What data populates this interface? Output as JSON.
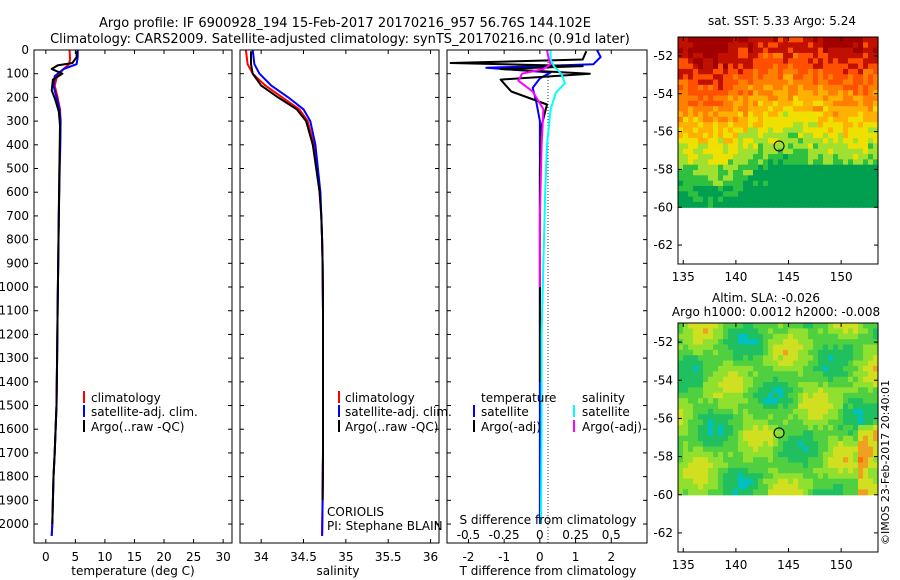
{
  "header": {
    "title_line1": "Argo profile: IF 6900928_194 15-Feb-2017 20170216_957 56.76S 144.102E",
    "title_line2": "Climatology: CARS2009. Satellite-adjusted climatology: synTS_20170216.nc (0.91d later)"
  },
  "chart_data": [
    {
      "id": "temperature",
      "type": "line",
      "xlabel": "temperature (deg C)",
      "ylabel": "",
      "xlim": [
        -2,
        31.5
      ],
      "ylim": [
        2080,
        0
      ],
      "xticks": [
        0,
        5,
        10,
        15,
        20,
        25,
        30
      ],
      "yticks": [
        0,
        100,
        200,
        300,
        400,
        500,
        600,
        700,
        800,
        900,
        1000,
        1100,
        1200,
        1300,
        1400,
        1500,
        1600,
        1700,
        1800,
        1900,
        2000
      ],
      "legend": [
        "climatology",
        "satellite-adj. clim.",
        "Argo(..raw -QC)"
      ],
      "legend_placement": "lower-left",
      "series": [
        {
          "name": "climatology",
          "color": "#ff0000",
          "x": [
            4.0,
            4.1,
            3.9,
            3.0,
            1.9,
            1.5,
            2.0,
            2.4,
            2.5,
            2.4,
            2.3,
            2.2,
            2.1,
            2.0,
            1.9,
            1.8,
            1.5,
            1.3,
            1.2,
            1.1,
            1.0
          ],
          "y": [
            0,
            40,
            60,
            80,
            110,
            150,
            200,
            250,
            300,
            400,
            500,
            700,
            900,
            1100,
            1300,
            1500,
            1700,
            1800,
            1900,
            2000,
            2050
          ]
        },
        {
          "name": "satellite-adj. clim.",
          "color": "#0000ff",
          "x": [
            5.4,
            5.4,
            5.2,
            3.0,
            1.5,
            1.3,
            1.8,
            2.3,
            2.5,
            2.45,
            2.35,
            2.2,
            2.1,
            2.0,
            1.9,
            1.8,
            1.5,
            1.3,
            1.2,
            1.1,
            1.0
          ],
          "y": [
            0,
            30,
            60,
            80,
            110,
            150,
            200,
            250,
            300,
            400,
            500,
            700,
            900,
            1100,
            1300,
            1500,
            1700,
            1800,
            1900,
            2000,
            2050
          ]
        },
        {
          "name": "Argo(..raw -QC)",
          "color": "#000000",
          "x": [
            5.2,
            5.2,
            4.5,
            2.0,
            1.0,
            2.8,
            1.2,
            1.0,
            1.6,
            2.2,
            2.4,
            2.35,
            2.3,
            2.2,
            2.1,
            2.0,
            1.9,
            1.8,
            1.5,
            1.3,
            1.2,
            1.1
          ],
          "y": [
            5,
            30,
            55,
            65,
            80,
            100,
            125,
            170,
            210,
            260,
            320,
            400,
            500,
            700,
            900,
            1100,
            1300,
            1500,
            1700,
            1800,
            1900,
            2000
          ]
        }
      ]
    },
    {
      "id": "salinity",
      "type": "line",
      "xlabel": "salinity",
      "ylabel": "",
      "xlim": [
        33.75,
        36.1
      ],
      "ylim": [
        2080,
        0
      ],
      "xticks": [
        34,
        34.5,
        35,
        35.5,
        36
      ],
      "legend": [
        "climatology",
        "satellite-adj. clim.",
        "Argo(..raw -QC)"
      ],
      "legend_placement": "lower-center",
      "annotations": [
        "CORIOLIS",
        "PI: Stephane BLAIN"
      ],
      "series": [
        {
          "name": "climatology",
          "color": "#ff0000",
          "x": [
            33.82,
            33.84,
            33.9,
            34.05,
            34.25,
            34.45,
            34.55,
            34.62,
            34.66,
            34.69,
            34.71,
            34.72,
            34.725,
            34.73,
            34.73,
            34.73,
            34.725,
            34.72
          ],
          "y": [
            0,
            60,
            100,
            150,
            200,
            250,
            300,
            400,
            500,
            600,
            700,
            800,
            900,
            1100,
            1400,
            1700,
            1900,
            2050
          ]
        },
        {
          "name": "satellite-adj. clim.",
          "color": "#0000ff",
          "x": [
            33.9,
            33.92,
            33.98,
            34.12,
            34.32,
            34.5,
            34.58,
            34.64,
            34.67,
            34.7,
            34.71,
            34.72,
            34.725,
            34.73,
            34.73,
            34.73,
            34.725,
            34.72
          ],
          "y": [
            0,
            60,
            100,
            150,
            200,
            250,
            300,
            400,
            500,
            600,
            700,
            800,
            900,
            1100,
            1400,
            1700,
            1900,
            2050
          ]
        },
        {
          "name": "Argo(..raw -QC)",
          "color": "#000000",
          "x": [
            33.88,
            33.88,
            33.9,
            34.0,
            34.2,
            34.42,
            34.53,
            34.61,
            34.65,
            34.69,
            34.71,
            34.72,
            34.725,
            34.73,
            34.73,
            34.73,
            34.725
          ],
          "y": [
            5,
            60,
            100,
            150,
            200,
            250,
            300,
            400,
            500,
            600,
            700,
            800,
            900,
            1100,
            1400,
            1700,
            1900
          ]
        }
      ]
    },
    {
      "id": "difference",
      "type": "line",
      "xlabel": "T difference from climatology",
      "x2label": "S difference from climatology",
      "ylabel": "",
      "xlim": [
        -2.6,
        3.0
      ],
      "ylim": [
        2080,
        0
      ],
      "xticks": [
        -2,
        -1,
        0,
        1,
        2
      ],
      "x2ticks": [
        "-0.5",
        "-0.25",
        "0",
        "0.25",
        "0.5"
      ],
      "x2tick_positions_in_T_units": [
        -2,
        -1,
        0,
        1,
        2
      ],
      "legend": [
        "temperature",
        "satellite",
        "Argo(-adj)",
        "salinity",
        "satellite",
        "Argo(-adj)"
      ],
      "legend_placement": "lower-center",
      "series": [
        {
          "name": "temperature satellite",
          "color": "#0000ff",
          "x": [
            1.6,
            1.7,
            1.5,
            -1.5,
            0.3,
            0.0,
            -0.2,
            -0.1,
            0.0,
            0.0,
            0.0,
            0.0,
            0.0,
            0.0
          ],
          "y": [
            0,
            30,
            60,
            75,
            95,
            120,
            160,
            220,
            300,
            500,
            900,
            1400,
            1800,
            2000
          ]
        },
        {
          "name": "temperature Argo(-adj)",
          "color": "#000000",
          "x": [
            1.3,
            1.2,
            -2.5,
            1.2,
            -1.1,
            1.4,
            -1.1,
            -0.8,
            0.2,
            0.05,
            0.0,
            0.0,
            0.0
          ],
          "y": [
            5,
            40,
            55,
            68,
            80,
            100,
            125,
            175,
            230,
            320,
            500,
            900,
            1400
          ]
        },
        {
          "name": "salinity satellite",
          "color": "#00ffff",
          "x": [
            0.3,
            0.3,
            0.4,
            0.6,
            0.7,
            0.45,
            0.3,
            0.2,
            0.15,
            0.1,
            0.05,
            0.05,
            0.03
          ],
          "y": [
            0,
            40,
            70,
            100,
            140,
            180,
            250,
            400,
            600,
            900,
            1200,
            1600,
            2000
          ]
        },
        {
          "name": "salinity Argo(-adj)",
          "color": "#ff00ff",
          "x": [
            0.2,
            0.25,
            0.3,
            0.1,
            -0.5,
            -0.6,
            -0.2,
            0.1,
            0.05,
            0.0,
            0.0
          ],
          "y": [
            0,
            40,
            60,
            80,
            100,
            130,
            175,
            250,
            400,
            700,
            1000
          ]
        }
      ]
    },
    {
      "id": "sst-map",
      "type": "heatmap",
      "title": "sat. SST: 5.33  Argo: 5.24",
      "xlim": [
        134.5,
        153.5
      ],
      "ylim": [
        -63,
        -51
      ],
      "xticks": [
        135,
        140,
        145,
        150
      ],
      "yticks": [
        -52,
        -54,
        -56,
        -58,
        -60,
        -62
      ],
      "data_bottom_lat": -60,
      "argo_position": {
        "lon": 144.1,
        "lat": -56.76
      },
      "color_scale": [
        "#00a050",
        "#30c040",
        "#a0e030",
        "#f0e000",
        "#ffb000",
        "#ff8000",
        "#ff5000",
        "#c01000",
        "#a00000"
      ]
    },
    {
      "id": "sla-map",
      "type": "heatmap",
      "title": "Altim. SLA: -0.026",
      "subtitle": "Argo h1000: 0.0012 h2000: -0.008",
      "xlim": [
        134.5,
        153.5
      ],
      "ylim": [
        -63,
        -51
      ],
      "xticks": [
        135,
        140,
        145,
        150
      ],
      "yticks": [
        -52,
        -54,
        -56,
        -58,
        -60,
        -62
      ],
      "data_bottom_lat": -60,
      "argo_position": {
        "lon": 144.1,
        "lat": -56.76
      },
      "color_scale": [
        "#00c0c0",
        "#20c060",
        "#50d040",
        "#90e030",
        "#d0e020",
        "#f0a020",
        "#ff7000"
      ]
    }
  ],
  "watermark": "©IMOS 23-Feb-2017 20:40:01"
}
